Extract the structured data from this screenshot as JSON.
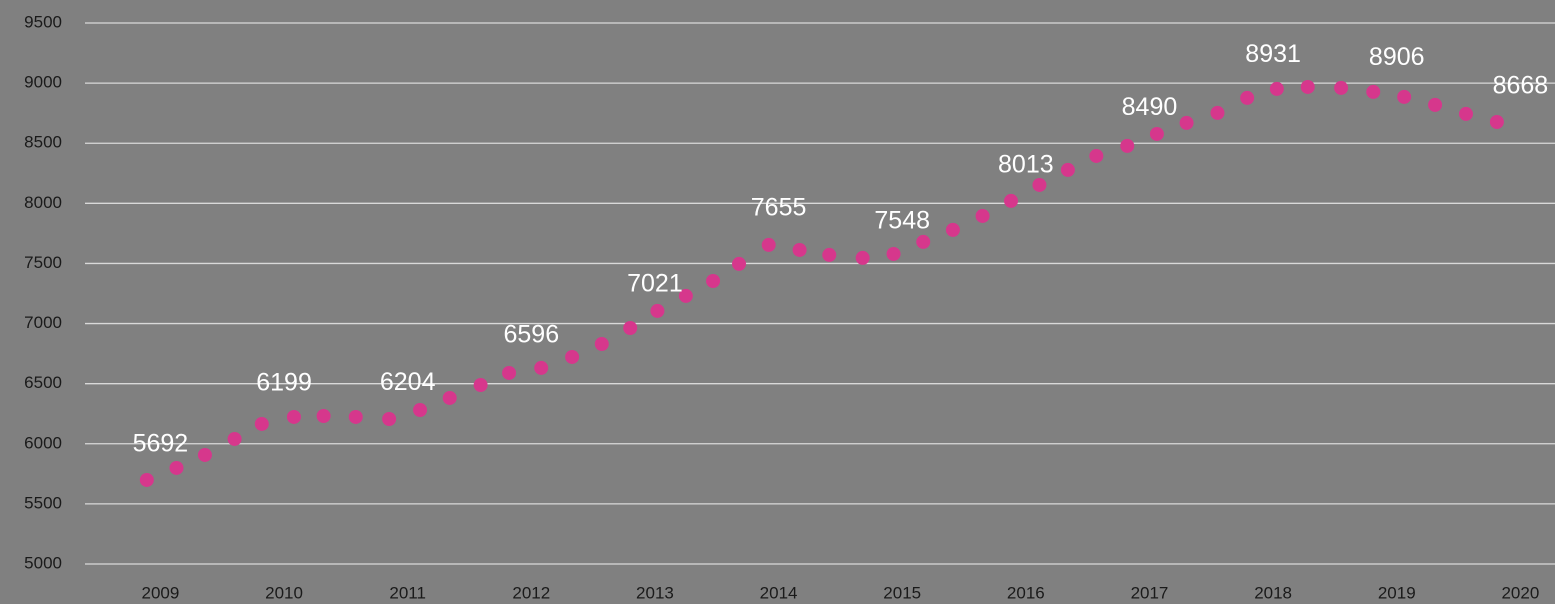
{
  "chart_data": {
    "type": "scatter",
    "color": "#d6378c",
    "grid": true,
    "x": [
      2008.89,
      2009.13,
      2009.36,
      2009.6,
      2009.82,
      2010.08,
      2010.32,
      2010.58,
      2010.85,
      2011.1,
      2011.34,
      2011.59,
      2011.82,
      2012.08,
      2012.33,
      2012.57,
      2012.8,
      2013.02,
      2013.25,
      2013.47,
      2013.68,
      2013.92,
      2014.17,
      2014.41,
      2014.68,
      2014.93,
      2015.17,
      2015.41,
      2015.65,
      2015.88,
      2016.11,
      2016.34,
      2016.57,
      2016.82,
      2017.06,
      2017.3,
      2017.55,
      2017.79,
      2018.03,
      2018.28,
      2018.55,
      2018.81,
      2019.06,
      2019.31,
      2019.56,
      2019.81
    ],
    "values": [
      5699,
      5799,
      5907,
      6040,
      6165,
      6223,
      6231,
      6223,
      6206,
      6281,
      6381,
      6489,
      6589,
      6631,
      6722,
      6830,
      6963,
      7105,
      7230,
      7354,
      7496,
      7654,
      7612,
      7571,
      7546,
      7579,
      7679,
      7779,
      7895,
      8020,
      8153,
      8278,
      8394,
      8478,
      8577,
      8669,
      8752,
      8877,
      8952,
      8968,
      8960,
      8927,
      8885,
      8819,
      8744,
      8677
    ],
    "point_labels": {
      "x": [
        2009,
        2010,
        2011,
        2012,
        2013,
        2014,
        2015,
        2016,
        2017,
        2018,
        2019,
        2020
      ],
      "values": [
        5692,
        6199,
        6204,
        6596,
        7021,
        7655,
        7548,
        8013,
        8490,
        8931,
        8906,
        8668
      ]
    },
    "xlim": [
      2008.39,
      2020.28
    ],
    "xticks": [
      2009,
      2010,
      2011,
      2012,
      2013,
      2014,
      2015,
      2016,
      2017,
      2018,
      2019,
      2020
    ],
    "ylim": [
      5000,
      9500
    ],
    "yticks": [
      5000,
      5500,
      6000,
      6500,
      7000,
      7500,
      8000,
      8500,
      9000,
      9500
    ]
  }
}
